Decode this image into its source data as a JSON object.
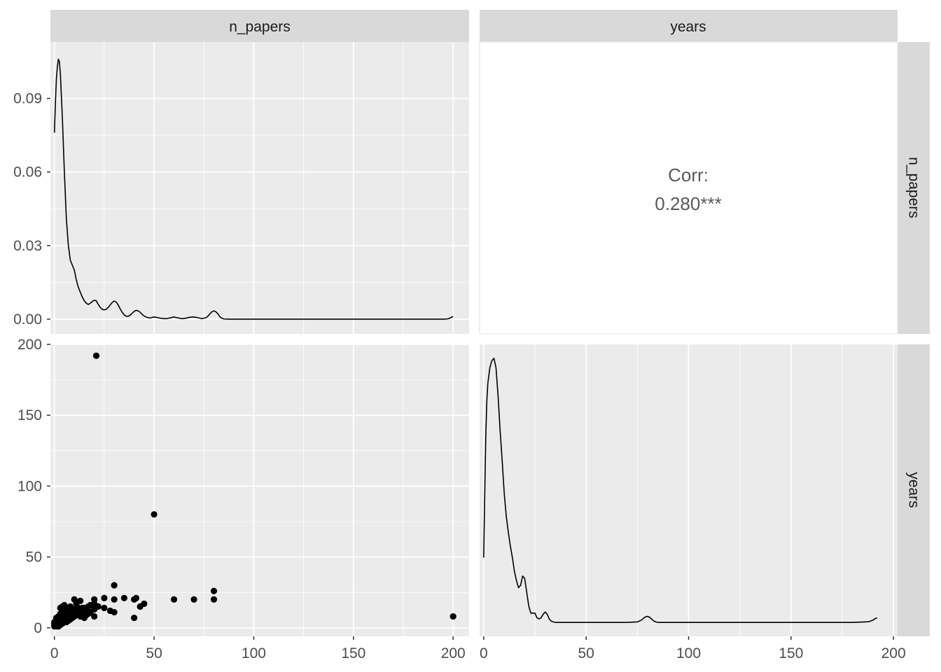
{
  "strips": {
    "top": [
      "n_papers",
      "years"
    ],
    "right": [
      "n_papers",
      "years"
    ]
  },
  "correlation": {
    "label": "Corr:",
    "value": "0.280***"
  },
  "colors": {
    "panel_bg": "#ebebeb",
    "strip_bg": "#d9d9d9",
    "grid": "#ffffff",
    "ink": "#000000",
    "tick_text": "#4d4d4d",
    "corr_text": "#595959"
  },
  "chart_data": [
    {
      "panel": "n_papers-density",
      "type": "line",
      "title": "",
      "xlabel": "",
      "ylabel": "",
      "xlim": [
        -2,
        208
      ],
      "ylim": [
        -0.006,
        0.113
      ],
      "x_ticks": [
        0,
        50,
        100,
        150,
        200
      ],
      "y_ticks": [
        0.0,
        0.03,
        0.06,
        0.09
      ],
      "y_tick_labels": [
        "0.00",
        "0.03",
        "0.06",
        "0.09"
      ],
      "grid": true,
      "x": [
        0,
        0.5,
        1,
        1.5,
        2,
        2.5,
        3,
        4,
        5,
        6,
        7,
        8,
        9,
        10,
        11,
        12,
        13,
        14,
        15,
        16,
        17,
        18,
        19,
        20,
        21,
        22,
        23,
        24,
        25,
        26,
        27,
        28,
        29,
        30,
        31,
        32,
        33,
        34,
        35,
        36,
        37,
        38,
        39,
        40,
        41,
        42,
        43,
        44,
        45,
        46,
        47,
        48,
        49,
        50,
        52,
        54,
        56,
        58,
        60,
        62,
        64,
        66,
        68,
        70,
        72,
        74,
        76,
        77,
        78,
        79,
        80,
        81,
        82,
        83,
        84,
        85,
        88,
        90,
        100,
        120,
        150,
        180,
        195,
        197,
        198,
        199,
        200
      ],
      "y": [
        0.076,
        0.088,
        0.098,
        0.103,
        0.106,
        0.105,
        0.1,
        0.082,
        0.06,
        0.041,
        0.03,
        0.024,
        0.022,
        0.02,
        0.016,
        0.013,
        0.011,
        0.009,
        0.0075,
        0.0065,
        0.006,
        0.0065,
        0.0072,
        0.0077,
        0.0075,
        0.006,
        0.0048,
        0.004,
        0.0038,
        0.004,
        0.0048,
        0.0058,
        0.0068,
        0.0074,
        0.007,
        0.0058,
        0.0042,
        0.0028,
        0.0018,
        0.0012,
        0.0012,
        0.0016,
        0.0024,
        0.0032,
        0.0036,
        0.0034,
        0.0028,
        0.002,
        0.0013,
        0.0009,
        0.0006,
        0.0005,
        0.0007,
        0.0009,
        0.0006,
        0.0003,
        0.0002,
        0.0005,
        0.0009,
        0.0005,
        0.0002,
        0.0004,
        0.0008,
        0.0009,
        0.0006,
        0.0002,
        0.0006,
        0.0012,
        0.0022,
        0.003,
        0.0034,
        0.003,
        0.0022,
        0.001,
        0.0004,
        0.0001,
        0.0,
        0.0,
        0.0,
        0.0,
        0.0,
        0.0,
        0.0,
        0.0001,
        0.0003,
        0.0007,
        0.0011
      ]
    },
    {
      "panel": "correlation",
      "type": "table",
      "label": "Corr:",
      "value": 0.28,
      "significance": "***"
    },
    {
      "panel": "n_papers-vs-years",
      "type": "scatter",
      "title": "",
      "xlabel": "",
      "ylabel": "",
      "xlim": [
        -2,
        208
      ],
      "ylim": [
        -6,
        200
      ],
      "x_ticks": [
        0,
        50,
        100,
        150,
        200
      ],
      "y_ticks": [
        0,
        50,
        100,
        150,
        200
      ],
      "grid": true,
      "points": [
        [
          0,
          1
        ],
        [
          0,
          2
        ],
        [
          0,
          3
        ],
        [
          0,
          4
        ],
        [
          1,
          1
        ],
        [
          1,
          2
        ],
        [
          1,
          3
        ],
        [
          1,
          5
        ],
        [
          1,
          6
        ],
        [
          1,
          7
        ],
        [
          2,
          1
        ],
        [
          2,
          2
        ],
        [
          2,
          3
        ],
        [
          2,
          4
        ],
        [
          2,
          6
        ],
        [
          2,
          8
        ],
        [
          3,
          2
        ],
        [
          3,
          3
        ],
        [
          3,
          5
        ],
        [
          3,
          7
        ],
        [
          3,
          10
        ],
        [
          3,
          14
        ],
        [
          4,
          3
        ],
        [
          4,
          5
        ],
        [
          4,
          8
        ],
        [
          4,
          12
        ],
        [
          4,
          15
        ],
        [
          5,
          5
        ],
        [
          5,
          7
        ],
        [
          5,
          10
        ],
        [
          5,
          16
        ],
        [
          6,
          4
        ],
        [
          6,
          6
        ],
        [
          6,
          9
        ],
        [
          6,
          13
        ],
        [
          7,
          5
        ],
        [
          7,
          8
        ],
        [
          7,
          11
        ],
        [
          7,
          14
        ],
        [
          8,
          6
        ],
        [
          8,
          9
        ],
        [
          8,
          12
        ],
        [
          8,
          15
        ],
        [
          9,
          7
        ],
        [
          9,
          10
        ],
        [
          9,
          13
        ],
        [
          10,
          8
        ],
        [
          10,
          11
        ],
        [
          10,
          20
        ],
        [
          10,
          13
        ],
        [
          11,
          9
        ],
        [
          11,
          12
        ],
        [
          11,
          17
        ],
        [
          12,
          10
        ],
        [
          12,
          14
        ],
        [
          13,
          8
        ],
        [
          13,
          12
        ],
        [
          13,
          19
        ],
        [
          14,
          10
        ],
        [
          14,
          14
        ],
        [
          15,
          7
        ],
        [
          15,
          11
        ],
        [
          15,
          14
        ],
        [
          16,
          9
        ],
        [
          16,
          13
        ],
        [
          17,
          10
        ],
        [
          17,
          15
        ],
        [
          18,
          11
        ],
        [
          18,
          16
        ],
        [
          20,
          8
        ],
        [
          20,
          13
        ],
        [
          20,
          17
        ],
        [
          20,
          20
        ],
        [
          21,
          192
        ],
        [
          22,
          15
        ],
        [
          25,
          14
        ],
        [
          25,
          21
        ],
        [
          28,
          12
        ],
        [
          30,
          11
        ],
        [
          30,
          20
        ],
        [
          30,
          30
        ],
        [
          35,
          21
        ],
        [
          40,
          7
        ],
        [
          40,
          20
        ],
        [
          41,
          21
        ],
        [
          43,
          15
        ],
        [
          45,
          17
        ],
        [
          50,
          80
        ],
        [
          60,
          20
        ],
        [
          70,
          20
        ],
        [
          80,
          20
        ],
        [
          80,
          26
        ],
        [
          200,
          8
        ]
      ]
    },
    {
      "panel": "years-density",
      "type": "line",
      "title": "",
      "xlabel": "",
      "ylabel": "",
      "xlim": [
        -2,
        202
      ],
      "ylim": [
        -0.006,
        0.12
      ],
      "x_ticks": [
        0,
        50,
        100,
        150,
        200
      ],
      "grid": true,
      "x": [
        0,
        0.5,
        1,
        1.5,
        2,
        3,
        4,
        5,
        6,
        7,
        8,
        9,
        10,
        11,
        12,
        13,
        14,
        15,
        16,
        17,
        18,
        19,
        20,
        21,
        22,
        23,
        24,
        25,
        26,
        27,
        28,
        29,
        30,
        31,
        32,
        33,
        34,
        35,
        40,
        50,
        60,
        70,
        75,
        77,
        78,
        79,
        80,
        81,
        82,
        83,
        84,
        85,
        90,
        120,
        150,
        180,
        188,
        190,
        191,
        192
      ],
      "y": [
        0.028,
        0.055,
        0.08,
        0.095,
        0.103,
        0.11,
        0.113,
        0.114,
        0.11,
        0.098,
        0.083,
        0.07,
        0.056,
        0.046,
        0.039,
        0.033,
        0.028,
        0.022,
        0.018,
        0.015,
        0.016,
        0.02,
        0.019,
        0.013,
        0.007,
        0.004,
        0.004,
        0.004,
        0.002,
        0.0015,
        0.002,
        0.0035,
        0.0045,
        0.0035,
        0.0015,
        0.0005,
        0.0002,
        0.0,
        0.0,
        0.0,
        0.0,
        0.0,
        0.0002,
        0.001,
        0.0018,
        0.0024,
        0.0026,
        0.0022,
        0.0014,
        0.0006,
        0.0002,
        0.0,
        0.0,
        0.0,
        0.0,
        0.0,
        0.0003,
        0.001,
        0.0016,
        0.002
      ]
    }
  ]
}
